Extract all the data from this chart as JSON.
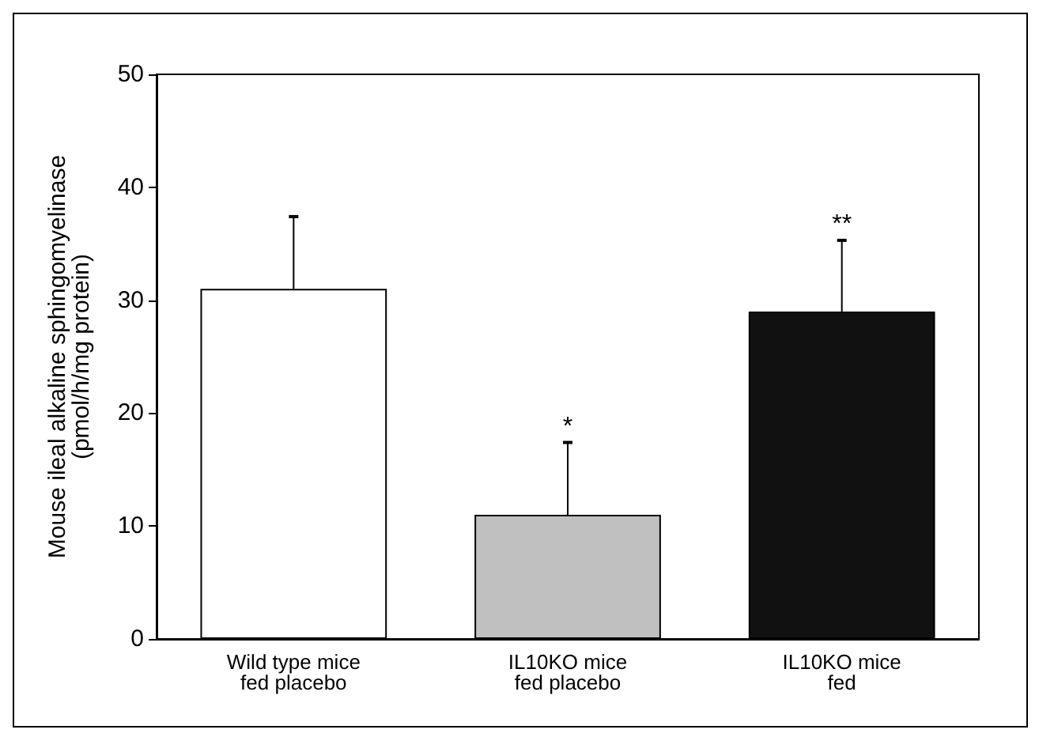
{
  "chart_data": {
    "type": "bar",
    "ylabel": "Mouse ileal alkaline sphingomyelinase\n(pmol/h/mg protein)",
    "categories": [
      "Wild type mice\nfed placebo",
      "IL10KO mice\nfed placebo",
      "IL10KO mice\nfed"
    ],
    "values": [
      31,
      11,
      29
    ],
    "colors": [
      "#ffffff",
      "#c0c0c0",
      "#111111"
    ],
    "errors": [
      [
        31,
        37.4
      ],
      [
        11,
        17.4
      ],
      [
        29,
        35.3
      ]
    ],
    "ylim": [
      0,
      50
    ],
    "yticks": [
      0,
      10,
      20,
      30,
      40,
      50
    ],
    "grid": false,
    "annotations": [
      {
        "text": "*",
        "x": "IL10KO mice\nfed placebo",
        "y": 17.4
      },
      {
        "text": "**",
        "x": "IL10KO mice\nfed",
        "y": 35.3
      }
    ]
  }
}
